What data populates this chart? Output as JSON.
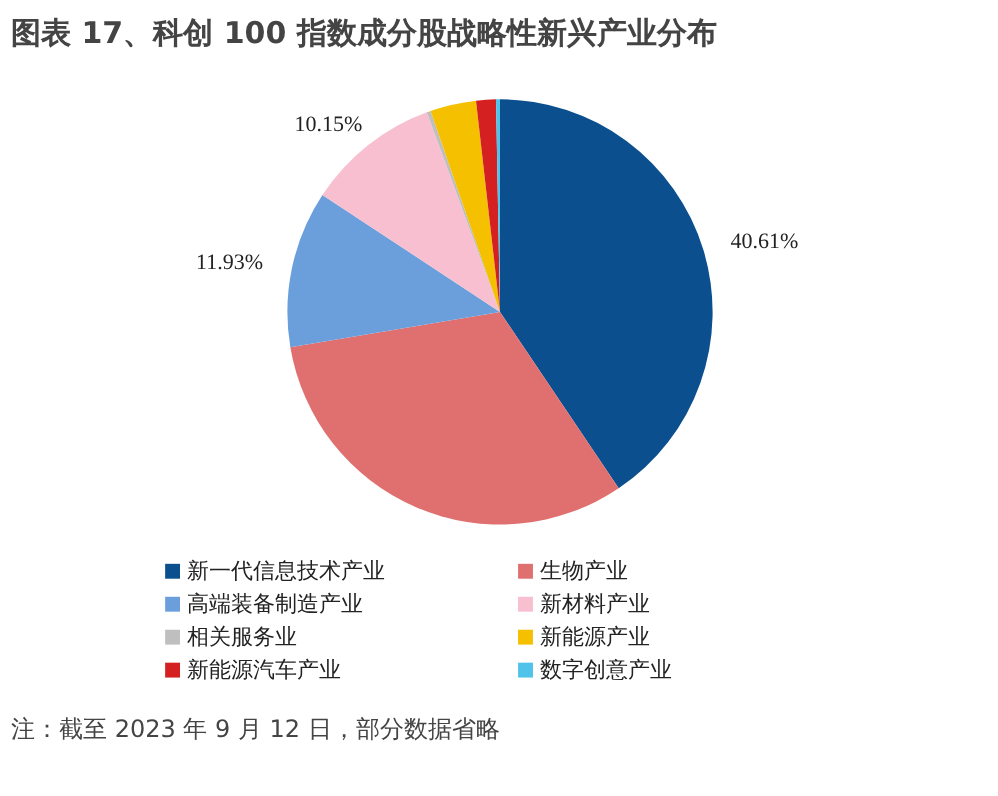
{
  "chart_data": {
    "type": "pie",
    "title": "图表 17、科创 100 指数成分股战略性新兴产业分布",
    "categories": [
      "新一代信息技术产业",
      "生物产业",
      "高端装备制造产业",
      "新材料产业",
      "相关服务业",
      "新能源产业",
      "新能源汽车产业",
      "数字创意产业"
    ],
    "values": [
      40.61,
      31.8,
      11.93,
      10.15,
      0.3,
      3.5,
      1.5,
      0.3
    ],
    "colors": [
      "#0b4f8f",
      "#e07070",
      "#6a9fdc",
      "#f7bfcf",
      "#bfbfbf",
      "#f5c000",
      "#d42020",
      "#4fc3ea"
    ],
    "value_labels": [
      "40.61%",
      null,
      "11.93%",
      "10.15%",
      null,
      null,
      null,
      null
    ],
    "legend": "bottom",
    "annotations": [
      "注：截至 2023 年 9 月 12 日，部分数据省略"
    ]
  }
}
